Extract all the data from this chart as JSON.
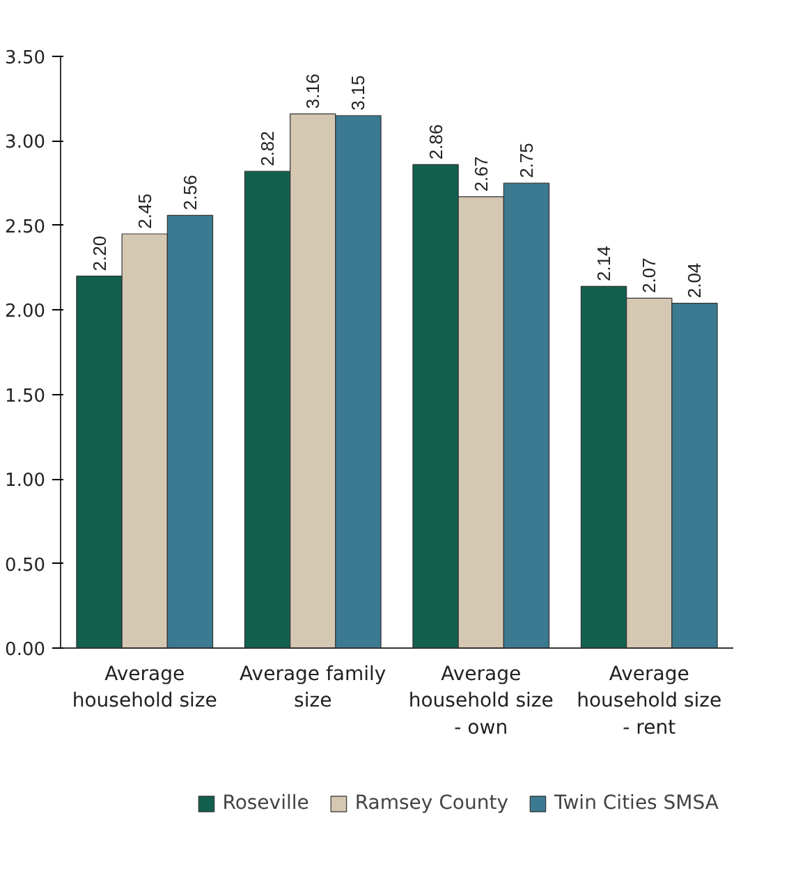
{
  "chart_data": {
    "type": "bar",
    "categories": [
      "Average household size",
      "Average family size",
      "Average household size - own",
      "Average household size - rent"
    ],
    "series": [
      {
        "name": "Roseville",
        "color": "#12604e",
        "values": [
          2.2,
          2.82,
          2.86,
          2.14
        ],
        "value_labels": [
          "2.20",
          "2.82",
          "2.86",
          "2.14"
        ]
      },
      {
        "name": "Ramsey County",
        "color": "#d5c8b3",
        "values": [
          2.45,
          3.16,
          2.67,
          2.07
        ],
        "value_labels": [
          "2.45",
          "3.16",
          "2.67",
          "2.07"
        ]
      },
      {
        "name": "Twin Cities SMSA",
        "color": "#3b7a90",
        "values": [
          2.56,
          3.15,
          2.75,
          2.04
        ],
        "value_labels": [
          "2.56",
          "3.15",
          "2.75",
          "2.04"
        ]
      }
    ],
    "ylim": [
      0,
      3.5
    ],
    "yticks": [
      {
        "value": 0,
        "label": "0.00"
      },
      {
        "value": 0.5,
        "label": "0.50"
      },
      {
        "value": 1,
        "label": "1.00"
      },
      {
        "value": 1.5,
        "label": "1.50"
      },
      {
        "value": 2,
        "label": "2.00"
      },
      {
        "value": 2.5,
        "label": "2.50"
      },
      {
        "value": 3,
        "label": "3.00"
      },
      {
        "value": 3.5,
        "label": "3.50"
      }
    ],
    "grid": false,
    "legend": "bottom"
  }
}
